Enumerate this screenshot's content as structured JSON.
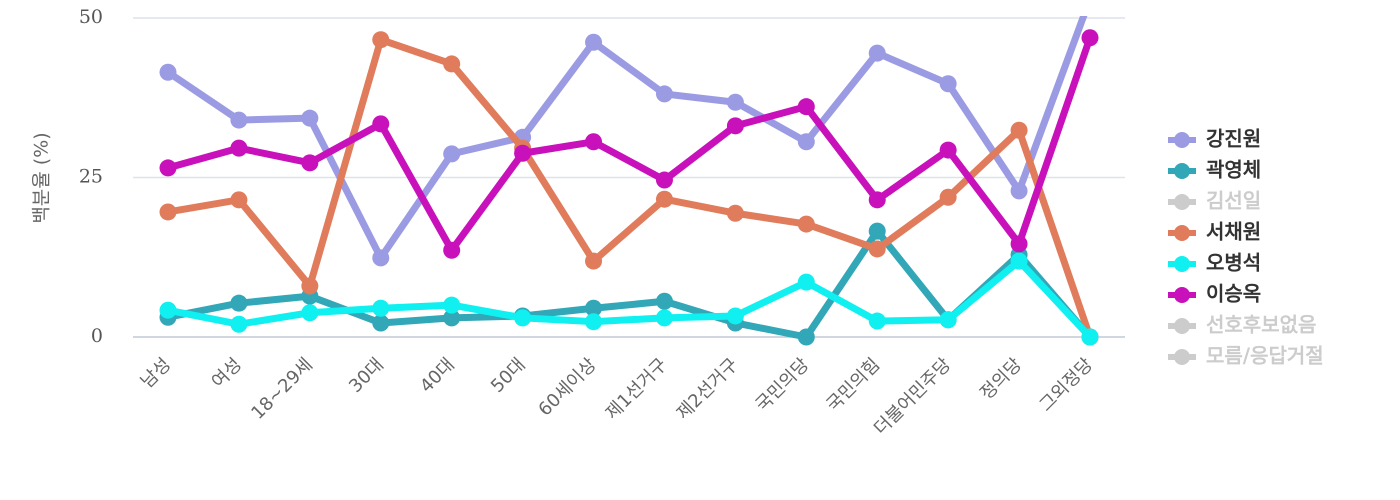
{
  "chart_data": {
    "type": "line",
    "y_label": "백분율 (%)",
    "categories": [
      "남성",
      "여성",
      "18~29세",
      "30대",
      "40대",
      "50대",
      "60세이상",
      "제1선거구",
      "제2선거구",
      "국민의당",
      "국민의힘",
      "더불어민주당",
      "정의당",
      "그외정당"
    ],
    "ylim": [
      0,
      50
    ],
    "yticks": [
      0,
      25,
      50
    ],
    "grid": true,
    "legend": "right",
    "series": [
      {
        "name": "강진원",
        "color": "#9b9be3",
        "visible": true,
        "values": [
          41.5,
          34.0,
          34.3,
          12.4,
          28.7,
          31.3,
          46.2,
          38.1,
          36.8,
          30.6,
          44.5,
          39.7,
          22.9,
          53
        ]
      },
      {
        "name": "곽영체",
        "color": "#31a7b7",
        "visible": true,
        "values": [
          3.1,
          5.3,
          6.4,
          2.2,
          3.0,
          3.3,
          4.5,
          5.6,
          2.2,
          0,
          16.6,
          2.7,
          12.9,
          0
        ]
      },
      {
        "name": "김선일",
        "color": "#cccccc",
        "visible": false,
        "values": [
          null,
          null,
          null,
          null,
          null,
          null,
          null,
          null,
          null,
          null,
          null,
          null,
          null,
          null
        ]
      },
      {
        "name": "서채원",
        "color": "#e07c5b",
        "visible": true,
        "values": [
          19.6,
          21.5,
          8.0,
          46.6,
          42.8,
          29.6,
          11.9,
          21.6,
          19.4,
          17.7,
          13.8,
          21.9,
          32.4,
          0
        ]
      },
      {
        "name": "오병석",
        "color": "#10f0f0",
        "visible": true,
        "values": [
          4.2,
          2.0,
          3.8,
          4.5,
          5.0,
          3.0,
          2.4,
          3.0,
          3.3,
          8.6,
          2.5,
          2.7,
          11.9,
          0
        ]
      },
      {
        "name": "이승옥",
        "color": "#c811bb",
        "visible": true,
        "values": [
          26.5,
          29.6,
          27.3,
          33.4,
          13.6,
          28.8,
          30.6,
          24.6,
          33.1,
          36.1,
          21.5,
          29.3,
          14.6,
          46.9
        ]
      },
      {
        "name": "선호후보없음",
        "color": "#cccccc",
        "visible": false,
        "values": [
          null,
          null,
          null,
          null,
          null,
          null,
          null,
          null,
          null,
          null,
          null,
          null,
          null,
          null
        ]
      },
      {
        "name": "모름/응답거절",
        "color": "#cccccc",
        "visible": false,
        "values": [
          null,
          null,
          null,
          null,
          null,
          null,
          null,
          null,
          null,
          null,
          null,
          null,
          null,
          null
        ]
      }
    ]
  }
}
